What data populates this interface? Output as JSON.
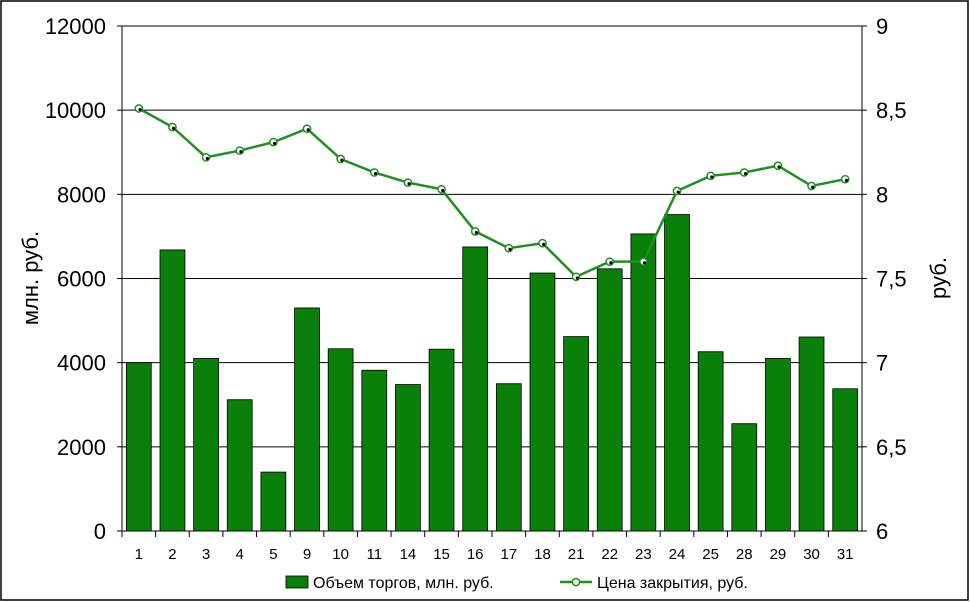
{
  "chart_data": {
    "type": "bar",
    "categories": [
      "1",
      "2",
      "3",
      "4",
      "5",
      "9",
      "10",
      "11",
      "14",
      "15",
      "16",
      "17",
      "18",
      "21",
      "22",
      "23",
      "24",
      "25",
      "28",
      "29",
      "30",
      "31"
    ],
    "ylabel": "млн. руб.",
    "y2label": "руб.",
    "ylim": [
      0,
      12000
    ],
    "y2lim": [
      6,
      9
    ],
    "yticks": [
      "0",
      "2000",
      "4000",
      "6000",
      "8000",
      "10000",
      "12000"
    ],
    "y2ticks": [
      "6",
      "6,5",
      "7",
      "7,5",
      "8",
      "8,5",
      "9"
    ],
    "grid": true,
    "legend_position": "bottom",
    "series": [
      {
        "name": "Объем торгов, млн. руб.",
        "type": "bar",
        "axis": "left",
        "color": "#0a7f0a",
        "values": [
          4000,
          6680,
          4100,
          3120,
          1400,
          5300,
          4330,
          3820,
          3480,
          4320,
          6750,
          3500,
          6130,
          4620,
          6230,
          7060,
          7520,
          4260,
          2550,
          4100,
          4610,
          3380
        ]
      },
      {
        "name": "Цена закрытия, руб.",
        "type": "line",
        "axis": "right",
        "color": "#1f8f1f",
        "values": [
          8.51,
          8.4,
          8.22,
          8.26,
          8.31,
          8.39,
          8.21,
          8.13,
          8.07,
          8.03,
          7.78,
          7.68,
          7.71,
          7.51,
          7.6,
          7.6,
          8.02,
          8.11,
          8.13,
          8.17,
          8.05,
          8.09
        ]
      }
    ]
  }
}
